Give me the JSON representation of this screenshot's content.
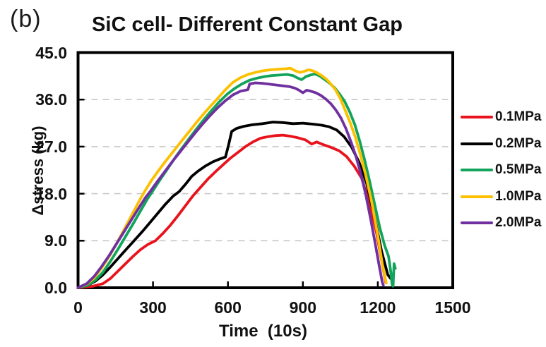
{
  "labels": {
    "panel": "(b)"
  },
  "chart_data": {
    "type": "line",
    "title": "SiC cell- Different Constant Gap",
    "xlabel": "Time  (10s)",
    "ylabel": "Δstress (kg)",
    "xlim": [
      0,
      1500
    ],
    "ylim": [
      0,
      45
    ],
    "grid": "horizontal-dashed",
    "grid_color": "#c8c8c8",
    "legend_position": "right",
    "x_ticks": [
      {
        "value": 0,
        "label": "0"
      },
      {
        "value": 300,
        "label": "300"
      },
      {
        "value": 600,
        "label": "600"
      },
      {
        "value": 900,
        "label": "900"
      },
      {
        "value": 1200,
        "label": "1200"
      },
      {
        "value": 1500,
        "label": "1500"
      }
    ],
    "y_ticks": [
      {
        "value": 0,
        "label": "0.0"
      },
      {
        "value": 9,
        "label": "9.0"
      },
      {
        "value": 18,
        "label": "18.0"
      },
      {
        "value": 27,
        "label": "27.0"
      },
      {
        "value": 36,
        "label": "36.0"
      },
      {
        "value": 45,
        "label": "45.0"
      }
    ],
    "gridline_values": [
      9,
      18,
      27,
      36
    ],
    "series": [
      {
        "name": "0.1MPa",
        "color": "#e8131d",
        "points": [
          [
            0,
            0
          ],
          [
            60,
            0.3
          ],
          [
            100,
            0.8
          ],
          [
            130,
            1.8
          ],
          [
            160,
            3.2
          ],
          [
            190,
            4.6
          ],
          [
            220,
            6.0
          ],
          [
            250,
            7.3
          ],
          [
            280,
            8.3
          ],
          [
            310,
            9.0
          ],
          [
            340,
            10.4
          ],
          [
            370,
            12.0
          ],
          [
            400,
            13.8
          ],
          [
            430,
            15.7
          ],
          [
            460,
            17.6
          ],
          [
            490,
            19.2
          ],
          [
            520,
            20.8
          ],
          [
            550,
            22.2
          ],
          [
            580,
            23.5
          ],
          [
            610,
            24.8
          ],
          [
            640,
            25.9
          ],
          [
            670,
            27.0
          ],
          [
            700,
            27.9
          ],
          [
            730,
            28.6
          ],
          [
            760,
            28.9
          ],
          [
            790,
            29.1
          ],
          [
            820,
            29.2
          ],
          [
            850,
            29.0
          ],
          [
            880,
            28.7
          ],
          [
            910,
            28.3
          ],
          [
            935,
            27.5
          ],
          [
            955,
            27.9
          ],
          [
            980,
            27.4
          ],
          [
            1010,
            26.9
          ],
          [
            1045,
            26.2
          ],
          [
            1075,
            25.1
          ],
          [
            1105,
            23.3
          ],
          [
            1135,
            21.0
          ],
          [
            1165,
            16.5
          ],
          [
            1195,
            10.5
          ],
          [
            1220,
            4.0
          ],
          [
            1232,
            1.0
          ]
        ]
      },
      {
        "name": "0.2MPa",
        "color": "#000000",
        "points": [
          [
            0,
            0
          ],
          [
            40,
            0.5
          ],
          [
            70,
            1.3
          ],
          [
            100,
            2.5
          ],
          [
            130,
            4.0
          ],
          [
            160,
            5.6
          ],
          [
            190,
            7.2
          ],
          [
            215,
            8.5
          ],
          [
            230,
            9.3
          ],
          [
            260,
            10.9
          ],
          [
            290,
            12.6
          ],
          [
            320,
            14.3
          ],
          [
            350,
            16.0
          ],
          [
            380,
            17.5
          ],
          [
            405,
            18.4
          ],
          [
            430,
            19.8
          ],
          [
            455,
            21.3
          ],
          [
            480,
            22.3
          ],
          [
            510,
            23.3
          ],
          [
            540,
            24.1
          ],
          [
            565,
            24.6
          ],
          [
            590,
            25.0
          ],
          [
            602,
            27.2
          ],
          [
            615,
            29.9
          ],
          [
            635,
            30.5
          ],
          [
            665,
            30.9
          ],
          [
            700,
            31.2
          ],
          [
            740,
            31.4
          ],
          [
            780,
            31.7
          ],
          [
            820,
            31.6
          ],
          [
            860,
            31.4
          ],
          [
            900,
            31.5
          ],
          [
            940,
            31.3
          ],
          [
            975,
            31.1
          ],
          [
            1005,
            30.8
          ],
          [
            1035,
            30.2
          ],
          [
            1065,
            28.9
          ],
          [
            1095,
            26.9
          ],
          [
            1125,
            24.0
          ],
          [
            1155,
            20.0
          ],
          [
            1185,
            14.0
          ],
          [
            1215,
            7.0
          ],
          [
            1240,
            2.5
          ],
          [
            1251,
            1.8
          ]
        ]
      },
      {
        "name": "0.5MPa",
        "color": "#12a45a",
        "points": [
          [
            0,
            0
          ],
          [
            40,
            0.5
          ],
          [
            70,
            1.5
          ],
          [
            100,
            3.0
          ],
          [
            130,
            5.1
          ],
          [
            160,
            7.4
          ],
          [
            190,
            9.8
          ],
          [
            220,
            12.2
          ],
          [
            250,
            14.7
          ],
          [
            278,
            17.0
          ],
          [
            296,
            18.3
          ],
          [
            326,
            20.5
          ],
          [
            356,
            22.6
          ],
          [
            386,
            24.7
          ],
          [
            416,
            26.7
          ],
          [
            446,
            28.6
          ],
          [
            476,
            30.5
          ],
          [
            506,
            32.3
          ],
          [
            536,
            34.0
          ],
          [
            566,
            35.6
          ],
          [
            596,
            37.0
          ],
          [
            626,
            38.1
          ],
          [
            656,
            39.0
          ],
          [
            686,
            39.7
          ],
          [
            716,
            40.1
          ],
          [
            746,
            40.4
          ],
          [
            776,
            40.6
          ],
          [
            806,
            40.7
          ],
          [
            836,
            40.8
          ],
          [
            860,
            40.6
          ],
          [
            880,
            40.1
          ],
          [
            895,
            39.8
          ],
          [
            912,
            40.4
          ],
          [
            930,
            40.7
          ],
          [
            948,
            40.9
          ],
          [
            968,
            40.5
          ],
          [
            988,
            39.8
          ],
          [
            1008,
            39.1
          ],
          [
            1028,
            38.2
          ],
          [
            1048,
            37.0
          ],
          [
            1068,
            35.6
          ],
          [
            1088,
            33.6
          ],
          [
            1108,
            31.2
          ],
          [
            1128,
            28.0
          ],
          [
            1148,
            24.3
          ],
          [
            1168,
            20.2
          ],
          [
            1188,
            15.8
          ],
          [
            1208,
            11.5
          ],
          [
            1228,
            8.0
          ],
          [
            1243,
            6.0
          ],
          [
            1252,
            3.0
          ],
          [
            1257,
            0.6
          ],
          [
            1261,
            0.3
          ],
          [
            1265,
            4.6
          ],
          [
            1270,
            3.7
          ]
        ]
      },
      {
        "name": "1.0MPa",
        "color": "#fdc000",
        "points": [
          [
            0,
            0
          ],
          [
            35,
            0.7
          ],
          [
            65,
            1.9
          ],
          [
            95,
            3.8
          ],
          [
            125,
            6.0
          ],
          [
            155,
            8.5
          ],
          [
            185,
            11.2
          ],
          [
            215,
            13.9
          ],
          [
            245,
            16.6
          ],
          [
            265,
            18.3
          ],
          [
            295,
            20.6
          ],
          [
            325,
            22.6
          ],
          [
            355,
            24.5
          ],
          [
            385,
            26.3
          ],
          [
            415,
            28.1
          ],
          [
            445,
            29.9
          ],
          [
            475,
            31.7
          ],
          [
            505,
            33.4
          ],
          [
            535,
            35.0
          ],
          [
            560,
            36.3
          ],
          [
            590,
            37.9
          ],
          [
            620,
            39.3
          ],
          [
            650,
            40.2
          ],
          [
            680,
            40.8
          ],
          [
            710,
            41.2
          ],
          [
            740,
            41.5
          ],
          [
            770,
            41.7
          ],
          [
            800,
            41.8
          ],
          [
            830,
            41.9
          ],
          [
            850,
            42.0
          ],
          [
            870,
            41.5
          ],
          [
            888,
            41.2
          ],
          [
            905,
            41.4
          ],
          [
            922,
            41.7
          ],
          [
            940,
            41.5
          ],
          [
            958,
            41.1
          ],
          [
            975,
            40.6
          ],
          [
            992,
            40.0
          ],
          [
            1010,
            39.1
          ],
          [
            1030,
            37.9
          ],
          [
            1050,
            36.2
          ],
          [
            1070,
            33.9
          ],
          [
            1090,
            31.5
          ],
          [
            1110,
            28.8
          ],
          [
            1130,
            25.5
          ],
          [
            1152,
            21.5
          ],
          [
            1175,
            16.5
          ],
          [
            1198,
            10.5
          ],
          [
            1218,
            4.5
          ],
          [
            1234,
            0.9
          ]
        ]
      },
      {
        "name": "2.0MPa",
        "color": "#7030a0",
        "points": [
          [
            0,
            0
          ],
          [
            35,
            0.8
          ],
          [
            65,
            2.2
          ],
          [
            95,
            4.1
          ],
          [
            125,
            6.2
          ],
          [
            155,
            8.5
          ],
          [
            185,
            10.8
          ],
          [
            215,
            13.1
          ],
          [
            245,
            15.4
          ],
          [
            272,
            17.4
          ],
          [
            290,
            18.5
          ],
          [
            320,
            20.5
          ],
          [
            350,
            22.4
          ],
          [
            380,
            24.3
          ],
          [
            410,
            26.1
          ],
          [
            440,
            27.9
          ],
          [
            470,
            29.7
          ],
          [
            500,
            31.4
          ],
          [
            530,
            33.0
          ],
          [
            560,
            34.5
          ],
          [
            590,
            35.8
          ],
          [
            620,
            36.9
          ],
          [
            650,
            37.6
          ],
          [
            680,
            37.9
          ],
          [
            687,
            39.0
          ],
          [
            710,
            39.2
          ],
          [
            740,
            39.1
          ],
          [
            775,
            38.9
          ],
          [
            810,
            38.7
          ],
          [
            845,
            38.5
          ],
          [
            868,
            38.2
          ],
          [
            885,
            37.8
          ],
          [
            900,
            37.3
          ],
          [
            915,
            37.8
          ],
          [
            932,
            37.6
          ],
          [
            952,
            37.3
          ],
          [
            972,
            36.8
          ],
          [
            992,
            36.1
          ],
          [
            1012,
            35.2
          ],
          [
            1032,
            34.0
          ],
          [
            1052,
            32.5
          ],
          [
            1072,
            30.5
          ],
          [
            1092,
            28.0
          ],
          [
            1112,
            25.2
          ],
          [
            1132,
            21.8
          ],
          [
            1152,
            17.8
          ],
          [
            1172,
            13.0
          ],
          [
            1192,
            7.8
          ],
          [
            1207,
            3.8
          ],
          [
            1218,
            1.0
          ],
          [
            1222,
            0.5
          ]
        ]
      }
    ]
  },
  "geometry_note": "plot area maps x 0-1500 to px 110.5-641, y 0-45 to px 408-74.5"
}
